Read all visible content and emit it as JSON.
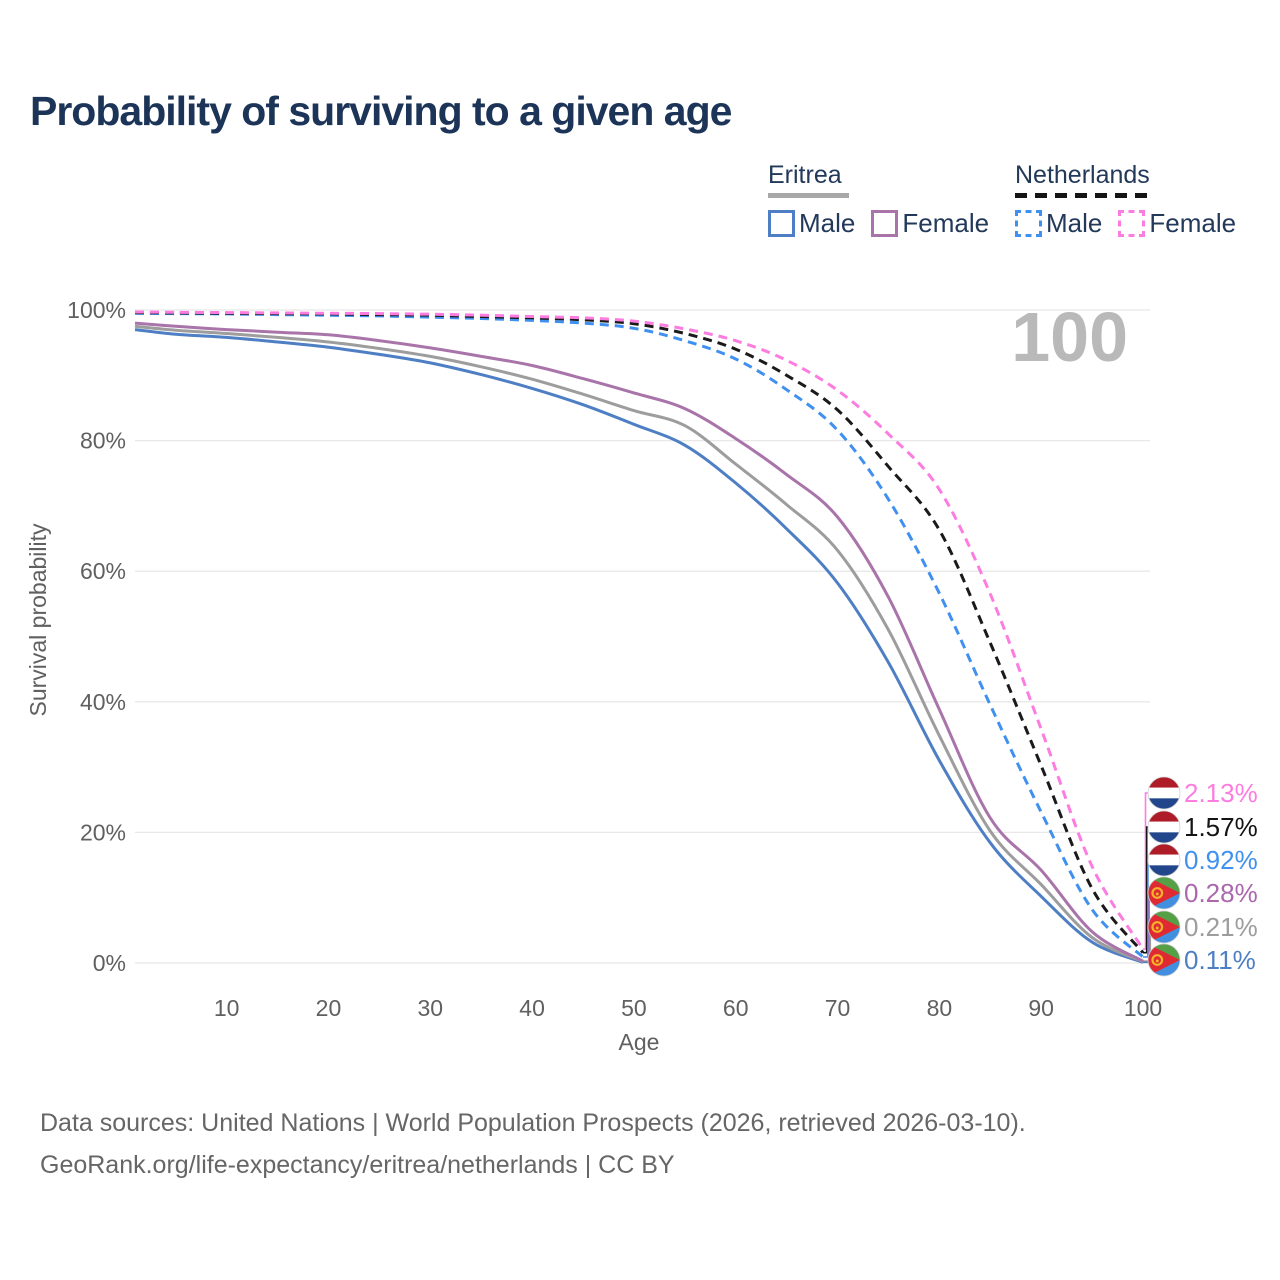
{
  "title": "Probability of surviving to a given age",
  "watermark": "100",
  "legend": {
    "groups": [
      {
        "label": "Eritrea",
        "line_style": "solid",
        "line_color": "#a8a8a8",
        "items": [
          {
            "label": "Male",
            "color": "#4e7fc4"
          },
          {
            "label": "Female",
            "color": "#a974a9"
          }
        ]
      },
      {
        "label": "Netherlands",
        "line_style": "dashed",
        "line_color": "#141414",
        "items": [
          {
            "label": "Male",
            "color": "#4090f0"
          },
          {
            "label": "Female",
            "color": "#fc7ce0"
          }
        ]
      }
    ]
  },
  "chart_data": {
    "type": "line",
    "title": "Probability of surviving to a given age",
    "xlabel": "Age",
    "ylabel": "Survival probability",
    "xlim": [
      1,
      100
    ],
    "ylim": [
      0,
      100
    ],
    "grid": "horizontal",
    "legend_position": "top-right",
    "x_ticks": [
      10,
      20,
      30,
      40,
      50,
      60,
      70,
      80,
      90,
      100
    ],
    "y_ticks": [
      {
        "value": 0,
        "label": "0%"
      },
      {
        "value": 20,
        "label": "20%"
      },
      {
        "value": 40,
        "label": "40%"
      },
      {
        "value": 60,
        "label": "60%"
      },
      {
        "value": 80,
        "label": "80%"
      },
      {
        "value": 100,
        "label": "100%"
      }
    ],
    "ages": [
      1,
      5,
      10,
      15,
      20,
      25,
      30,
      35,
      40,
      45,
      50,
      55,
      60,
      65,
      70,
      75,
      80,
      85,
      90,
      95,
      100
    ],
    "series": [
      {
        "key": "er_male",
        "name": "Eritrea Male",
        "country": "Eritrea",
        "sex": "Male",
        "color": "#4e7fc4",
        "dashed": false,
        "values": [
          97.0,
          96.3,
          95.8,
          95.1,
          94.3,
          93.2,
          91.9,
          90.1,
          88.0,
          85.5,
          82.5,
          79.3,
          73.5,
          66.5,
          58.2,
          46.0,
          31.0,
          18.4,
          10.2,
          3.2,
          0.11
        ]
      },
      {
        "key": "er_both",
        "name": "Eritrea Both sexes",
        "country": "Eritrea",
        "sex": "Both",
        "color": "#9d9d9d",
        "dashed": false,
        "values": [
          97.5,
          96.9,
          96.4,
          95.8,
          95.1,
          94.1,
          92.9,
          91.3,
          89.4,
          87.1,
          84.6,
          82.3,
          76.4,
          70.2,
          63.2,
          51.0,
          34.8,
          20.2,
          12.0,
          3.9,
          0.21
        ]
      },
      {
        "key": "er_female",
        "name": "Eritrea Female",
        "country": "Eritrea",
        "sex": "Female",
        "color": "#a974a9",
        "dashed": false,
        "values": [
          98.0,
          97.5,
          97.0,
          96.6,
          96.2,
          95.3,
          94.2,
          92.9,
          91.5,
          89.5,
          87.3,
          84.9,
          80.3,
          74.8,
          68.3,
          56.0,
          38.8,
          22.2,
          14.2,
          4.8,
          0.28
        ]
      },
      {
        "key": "nl_male",
        "name": "Netherlands Male",
        "country": "Netherlands",
        "sex": "Male",
        "color": "#4090f0",
        "dashed": true,
        "values": [
          99.5,
          99.45,
          99.4,
          99.3,
          99.2,
          99.1,
          98.9,
          98.7,
          98.4,
          98.0,
          97.2,
          95.3,
          92.5,
          87.8,
          81.6,
          71.0,
          56.6,
          39.5,
          23.1,
          8.2,
          0.92
        ]
      },
      {
        "key": "nl_both",
        "name": "Netherlands Both sexes",
        "country": "Netherlands",
        "sex": "Both",
        "color": "#1a1a1a",
        "dashed": true,
        "values": [
          99.6,
          99.55,
          99.5,
          99.45,
          99.4,
          99.3,
          99.2,
          99.0,
          98.8,
          98.5,
          97.9,
          96.4,
          94.0,
          90.0,
          84.7,
          76.0,
          66.3,
          49.0,
          30.2,
          11.4,
          1.57
        ]
      },
      {
        "key": "nl_female",
        "name": "Netherlands Female",
        "country": "Netherlands",
        "sex": "Female",
        "color": "#fc7ce0",
        "dashed": true,
        "values": [
          99.7,
          99.65,
          99.6,
          99.55,
          99.5,
          99.45,
          99.35,
          99.2,
          99.0,
          98.8,
          98.3,
          97.1,
          95.3,
          92.3,
          87.7,
          81.0,
          72.5,
          56.5,
          35.8,
          14.8,
          2.13
        ]
      }
    ],
    "end_labels": [
      {
        "series_key": "nl_female",
        "flag": "netherlands",
        "value": "2.13%",
        "color": "#fc7ce0"
      },
      {
        "series_key": "nl_both",
        "flag": "netherlands",
        "value": "1.57%",
        "color": "#141414"
      },
      {
        "series_key": "nl_male",
        "flag": "netherlands",
        "value": "0.92%",
        "color": "#4090f0"
      },
      {
        "series_key": "er_female",
        "flag": "eritrea",
        "value": "0.28%",
        "color": "#ab68ad"
      },
      {
        "series_key": "er_both",
        "flag": "eritrea",
        "value": "0.21%",
        "color": "#9d9d9d"
      },
      {
        "series_key": "er_male",
        "flag": "eritrea",
        "value": "0.11%",
        "color": "#4e7fc4"
      }
    ]
  },
  "footer": {
    "line1": "Data sources: United Nations | World Population Prospects (2026, retrieved 2026-03-10).",
    "line2": "GeoRank.org/life-expectancy/eritrea/netherlands | CC BY"
  }
}
